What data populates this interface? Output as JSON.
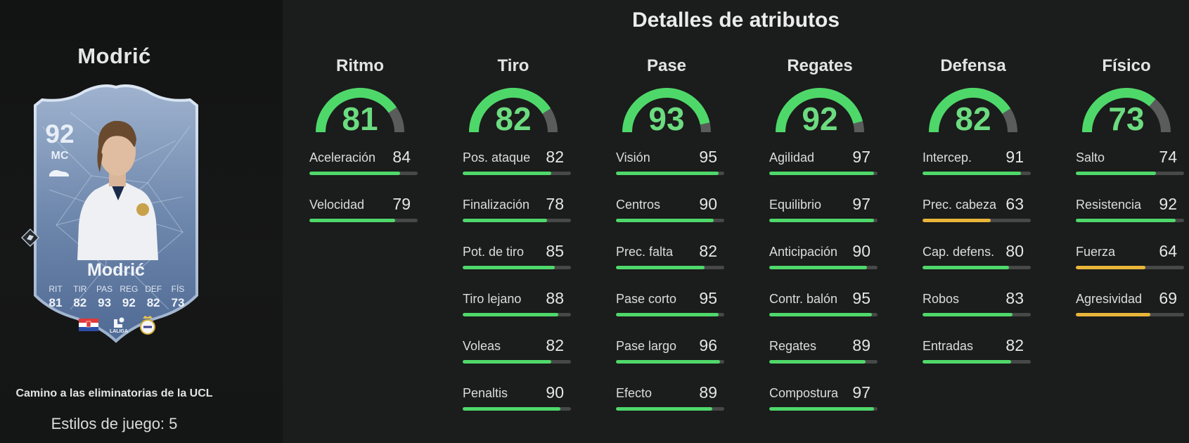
{
  "colors": {
    "green": "#4fd86a",
    "yellow": "#e9b53a",
    "track": "#5a5c5c"
  },
  "left": {
    "player_title": "Modrić",
    "promo_text": "Camino a las eliminatorias de la UCL",
    "playstyles": "Estilos de juego: 5"
  },
  "card": {
    "rating": "92",
    "position": "MC",
    "name": "Modrić",
    "stats": [
      {
        "label": "RIT",
        "value": "81"
      },
      {
        "label": "TIR",
        "value": "82"
      },
      {
        "label": "PAS",
        "value": "93"
      },
      {
        "label": "REG",
        "value": "92"
      },
      {
        "label": "DEF",
        "value": "82"
      },
      {
        "label": "FÍS",
        "value": "73"
      }
    ],
    "league_label": "LALIGA",
    "icons": [
      "boot-icon",
      "croatia-flag-icon",
      "laliga-logo-icon",
      "real-madrid-crest-icon",
      "playstyle-icon"
    ]
  },
  "section_title": "Detalles de atributos",
  "columns": [
    {
      "name": "Ritmo",
      "value": 81,
      "attrs": [
        {
          "name": "Aceleración",
          "value": 84
        },
        {
          "name": "Velocidad",
          "value": 79
        }
      ]
    },
    {
      "name": "Tiro",
      "value": 82,
      "attrs": [
        {
          "name": "Pos. ataque",
          "value": 82
        },
        {
          "name": "Finalización",
          "value": 78
        },
        {
          "name": "Pot. de tiro",
          "value": 85
        },
        {
          "name": "Tiro lejano",
          "value": 88
        },
        {
          "name": "Voleas",
          "value": 82
        },
        {
          "name": "Penaltis",
          "value": 90
        }
      ]
    },
    {
      "name": "Pase",
      "value": 93,
      "attrs": [
        {
          "name": "Visión",
          "value": 95
        },
        {
          "name": "Centros",
          "value": 90
        },
        {
          "name": "Prec. falta",
          "value": 82
        },
        {
          "name": "Pase corto",
          "value": 95
        },
        {
          "name": "Pase largo",
          "value": 96
        },
        {
          "name": "Efecto",
          "value": 89
        }
      ]
    },
    {
      "name": "Regates",
      "value": 92,
      "attrs": [
        {
          "name": "Agilidad",
          "value": 97
        },
        {
          "name": "Equilibrio",
          "value": 97
        },
        {
          "name": "Anticipación",
          "value": 90
        },
        {
          "name": "Contr. balón",
          "value": 95
        },
        {
          "name": "Regates",
          "value": 89
        },
        {
          "name": "Compostura",
          "value": 97
        }
      ]
    },
    {
      "name": "Defensa",
      "value": 82,
      "attrs": [
        {
          "name": "Intercep.",
          "value": 91
        },
        {
          "name": "Prec. cabeza",
          "value": 63
        },
        {
          "name": "Cap. defens.",
          "value": 80
        },
        {
          "name": "Robos",
          "value": 83
        },
        {
          "name": "Entradas",
          "value": 82
        }
      ]
    },
    {
      "name": "Físico",
      "value": 73,
      "attrs": [
        {
          "name": "Salto",
          "value": 74
        },
        {
          "name": "Resistencia",
          "value": 92
        },
        {
          "name": "Fuerza",
          "value": 64
        },
        {
          "name": "Agresividad",
          "value": 69
        }
      ]
    }
  ]
}
